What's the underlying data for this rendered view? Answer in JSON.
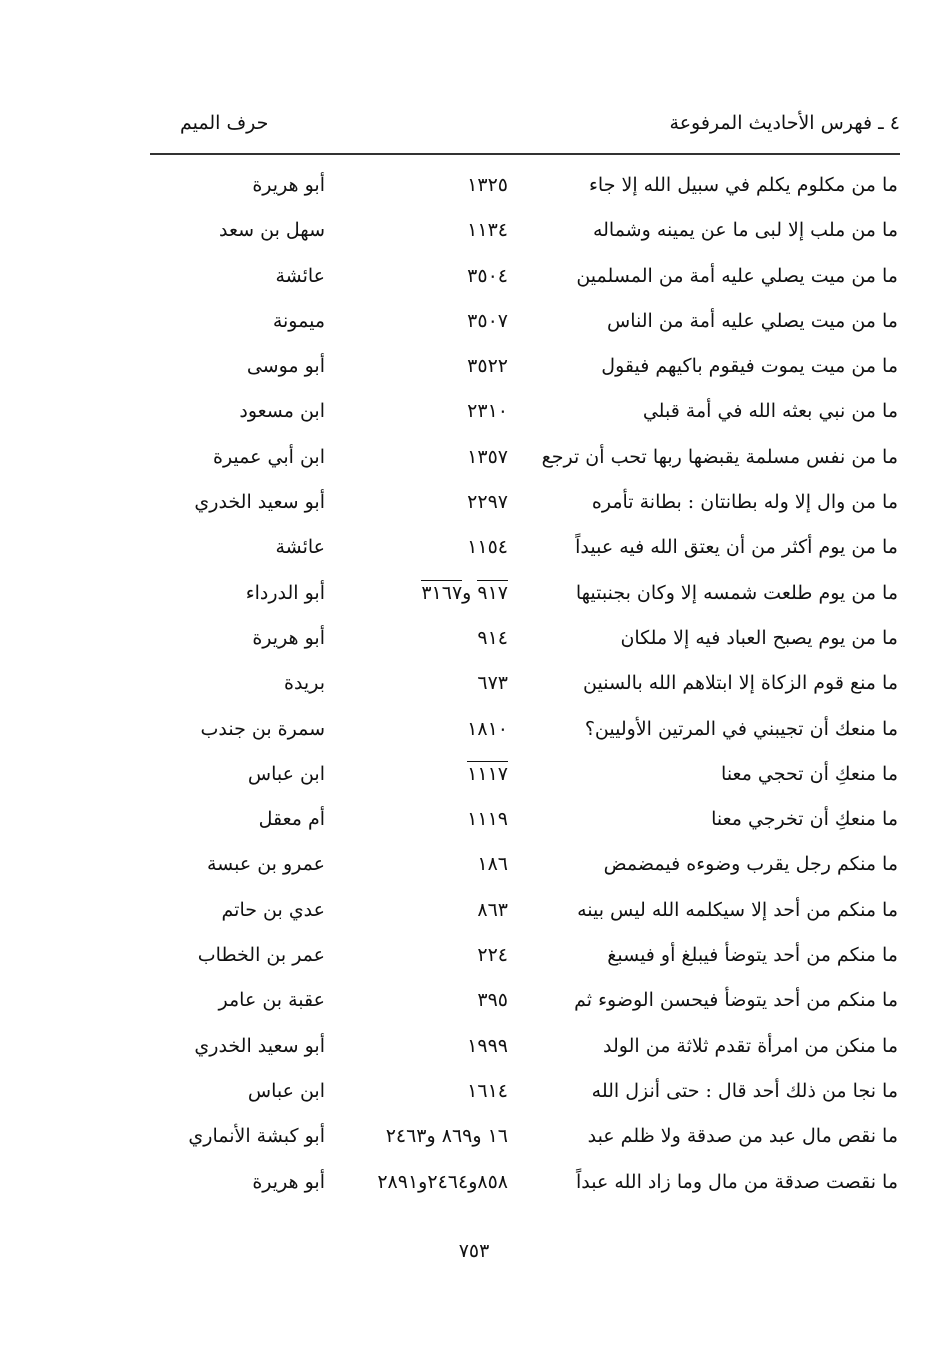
{
  "header": {
    "section": "٤ ـ فهرس الأحاديث المرفوعة",
    "letter": "حرف الميم"
  },
  "rows": [
    {
      "text": "ما من مكلوم يكلم في سبيل الله إلا جاء",
      "num": [
        {
          "t": "١٣٢٥"
        }
      ],
      "narrator": "أبو هريرة"
    },
    {
      "text": "ما من ملب إلا لبى ما عن يمينه وشماله",
      "num": [
        {
          "t": "١١٣٤"
        }
      ],
      "narrator": "سهل بن سعد"
    },
    {
      "text": "ما من ميت يصلي عليه أمة من المسلمين",
      "num": [
        {
          "t": "٣٥٠٤"
        }
      ],
      "narrator": "عائشة"
    },
    {
      "text": "ما من ميت يصلي عليه أمة من الناس",
      "num": [
        {
          "t": "٣٥٠٧"
        }
      ],
      "narrator": "ميمونة"
    },
    {
      "text": "ما من ميت يموت فيقوم باكيهم فيقول",
      "num": [
        {
          "t": "٣٥٢٢"
        }
      ],
      "narrator": "أبو موسى"
    },
    {
      "text": "ما من نبي بعثه الله في أمة قبلي",
      "num": [
        {
          "t": "٢٣١٠"
        }
      ],
      "narrator": "ابن مسعود"
    },
    {
      "text": "ما من نفس مسلمة يقبضها ربها تحب أن ترجع",
      "num": [
        {
          "t": "١٣٥٧"
        }
      ],
      "narrator": "ابن أبي عميرة"
    },
    {
      "text": "ما من وال إلا وله بطانتان : بطانة تأمره",
      "num": [
        {
          "t": "٢٢٩٧"
        }
      ],
      "narrator": "أبو سعيد الخدري"
    },
    {
      "text": "ما من يوم أكثر من أن يعتق الله فيه عبيداً",
      "num": [
        {
          "t": "١١٥٤"
        }
      ],
      "narrator": "عائشة"
    },
    {
      "text": "ما من يوم طلعت شمسه إلا وكان بجنبتيها",
      "num": [
        {
          "t": "٩١٧",
          "overlined": true
        },
        {
          "t": " و"
        },
        {
          "t": "٣١٦٧",
          "overlined": true
        }
      ],
      "narrator": "أبو الدرداء"
    },
    {
      "text": "ما من يوم يصبح العباد فيه إلا ملكان",
      "num": [
        {
          "t": "٩١٤"
        }
      ],
      "narrator": "أبو هريرة"
    },
    {
      "text": "ما منع قوم الزكاة إلا ابتلاهم الله بالسنين",
      "num": [
        {
          "t": "٦٧٣"
        }
      ],
      "narrator": "بريدة"
    },
    {
      "text": "ما منعك أن تجيبني في المرتين الأوليين؟",
      "num": [
        {
          "t": "١٨١٠"
        }
      ],
      "narrator": "سمرة بن جندب"
    },
    {
      "text": "ما منعكِ أن تحجي معنا",
      "num": [
        {
          "t": "١١١٧",
          "overlined": true
        }
      ],
      "narrator": "ابن عباس"
    },
    {
      "text": "ما منعكِ أن تخرجي معنا",
      "num": [
        {
          "t": "١١١٩"
        }
      ],
      "narrator": "أم معقل"
    },
    {
      "text": "ما منكم رجل يقرب وضوءه فيمضمض",
      "num": [
        {
          "t": "١٨٦"
        }
      ],
      "narrator": "عمرو بن عبسة"
    },
    {
      "text": "ما منكم من أحد إلا سيكلمه الله ليس بينه",
      "num": [
        {
          "t": "٨٦٣"
        }
      ],
      "narrator": "عدي بن حاتم"
    },
    {
      "text": "ما منكم من أحد يتوضأ فيبلغ أو فيسبغ",
      "num": [
        {
          "t": "٢٢٤"
        }
      ],
      "narrator": "عمر بن الخطاب"
    },
    {
      "text": "ما منكم من أحد يتوضأ فيحسن الوضوء ثم",
      "num": [
        {
          "t": "٣٩٥"
        }
      ],
      "narrator": "عقبة بن عامر"
    },
    {
      "text": "ما منكن من امرأة تقدم ثلاثة من الولد",
      "num": [
        {
          "t": "١٩٩٩"
        }
      ],
      "narrator": "أبو سعيد الخدري"
    },
    {
      "text": "ما نجا من ذلك أحد قال : حتى أنزل الله",
      "num": [
        {
          "t": "١٦١٤"
        }
      ],
      "narrator": "ابن عباس"
    },
    {
      "text": "ما نقص مال عبد من صدقة ولا ظلم عبد",
      "num": [
        {
          "t": "١٦ و٨٦٩ و٢٤٦٣"
        }
      ],
      "narrator": "أبو كبشة الأنماري"
    },
    {
      "text": "ما نقصت صدقة من مال وما زاد الله عبداً",
      "num": [
        {
          "t": "٨٥٨و٢٤٦٤و٢٨٩١"
        }
      ],
      "narrator": "أبو هريرة"
    }
  ],
  "page_number": "٧٥٣"
}
